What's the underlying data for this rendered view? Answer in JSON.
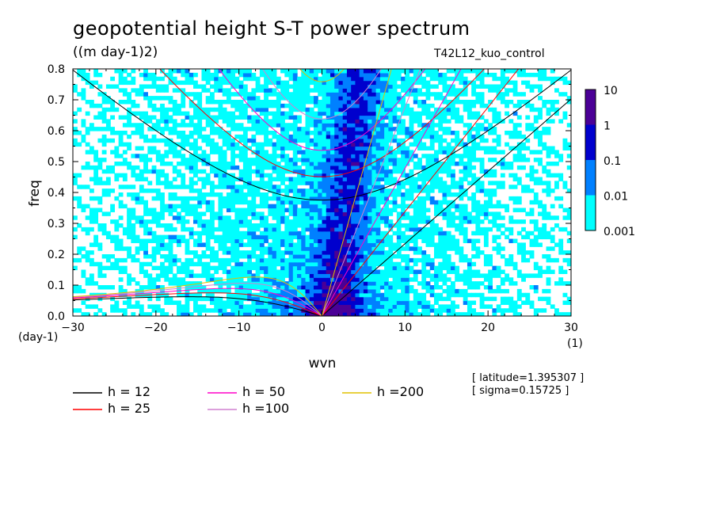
{
  "header": {
    "title": "geopotential height S-T power spectrum",
    "units": "((m day-1)2)",
    "run": "T42L12_kuo_control"
  },
  "info": {
    "latitude": "[ latitude=1.395307 ]",
    "sigma": "[ sigma=0.15725 ]"
  },
  "chart_data": {
    "type": "heatmap",
    "title": "geopotential height S-T power spectrum",
    "subtitle": "((m day-1)2)",
    "xlabel": "wvn",
    "ylabel": "freq",
    "x_units": "(1)",
    "y_units": "(day-1)",
    "xlim": [
      -30,
      30
    ],
    "ylim": [
      0,
      0.8
    ],
    "x_ticks": [
      -30,
      -20,
      -10,
      0,
      10,
      20,
      30
    ],
    "y_ticks": [
      0.0,
      0.1,
      0.2,
      0.3,
      0.4,
      0.5,
      0.6,
      0.7,
      0.8
    ],
    "colorbar": {
      "levels": [
        "0.001",
        "0.01",
        "0.1",
        "1",
        "10"
      ],
      "colors": [
        "#00ffff",
        "#0080ff",
        "#0000cd",
        "#4b0096"
      ]
    },
    "dispersion_curves": [
      {
        "name": "h = 12",
        "h": 12,
        "color": "#000000"
      },
      {
        "name": "h = 25",
        "h": 25,
        "color": "#ff0000"
      },
      {
        "name": "h = 50",
        "h": 50,
        "color": "#ff00c8"
      },
      {
        "name": "h =100",
        "h": 100,
        "color": "#d080d0"
      },
      {
        "name": "h =200",
        "h": 200,
        "color": "#e0c000"
      }
    ]
  }
}
